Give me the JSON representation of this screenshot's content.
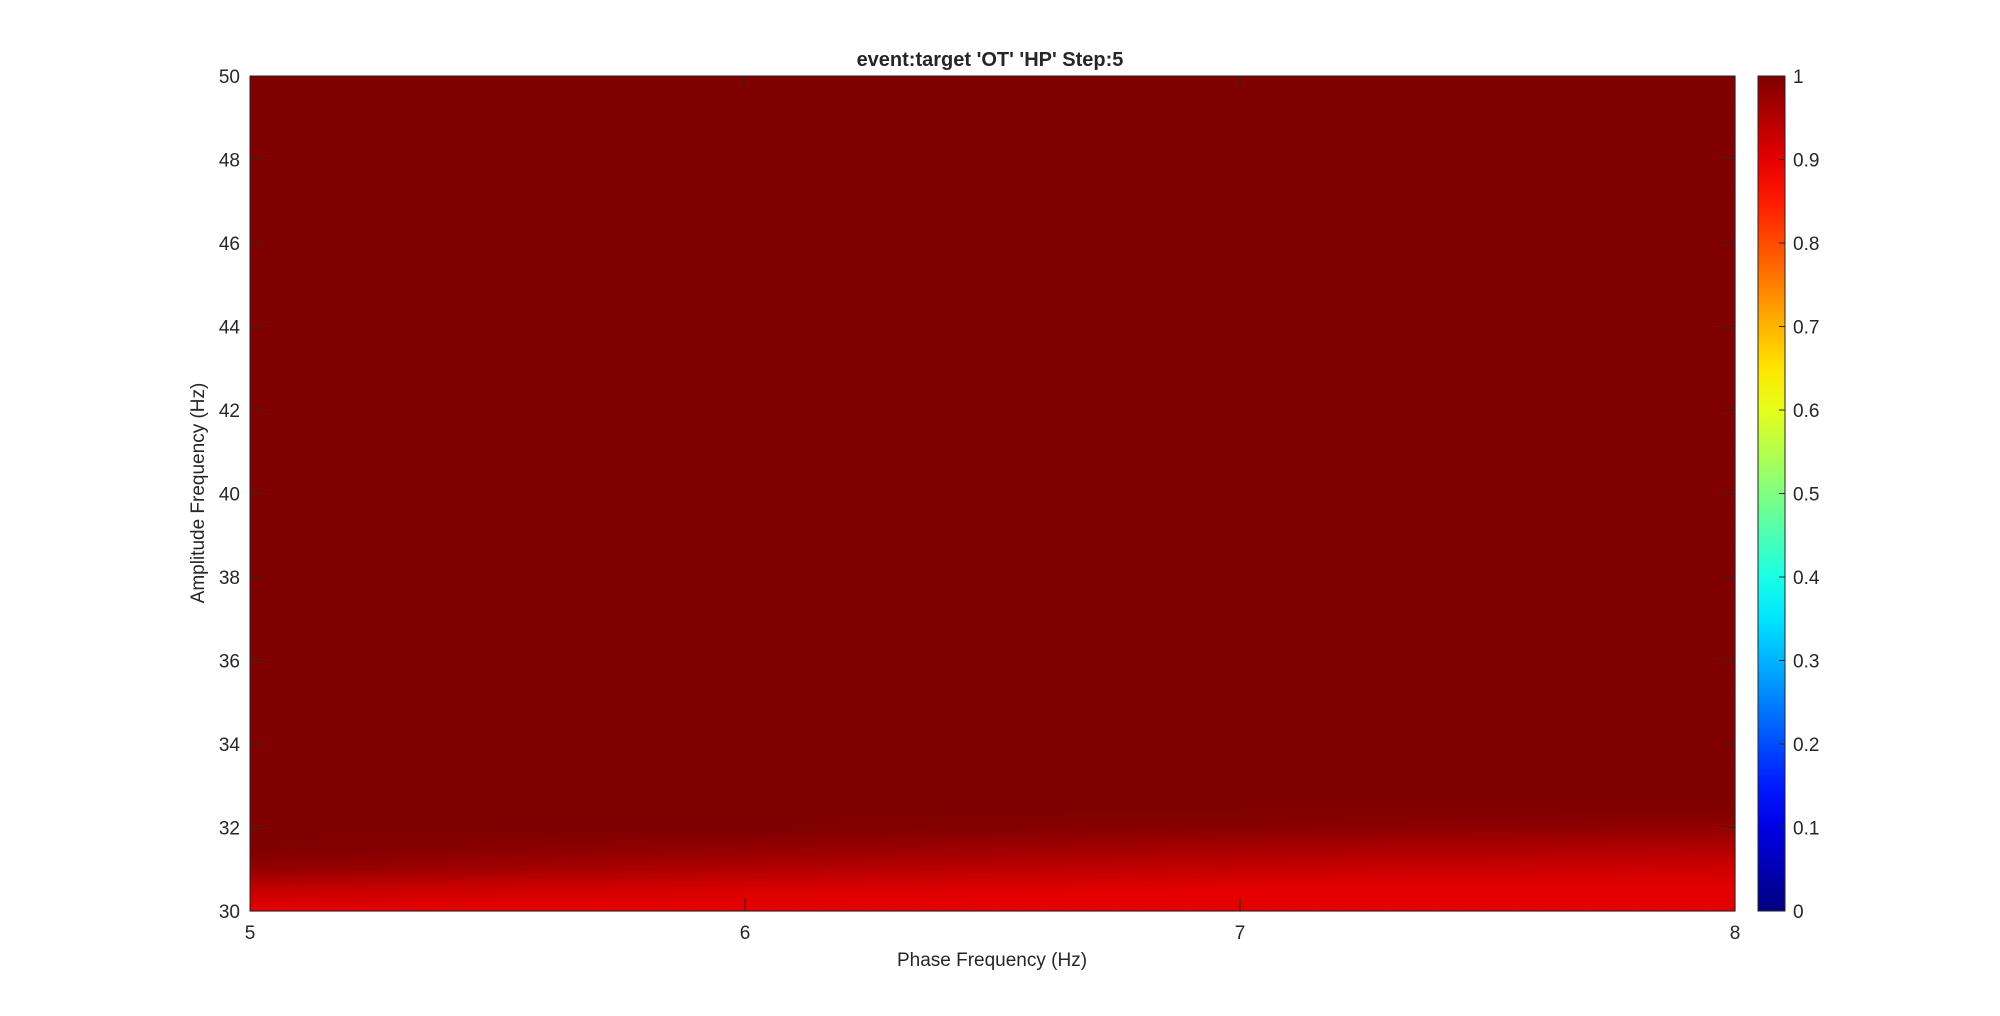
{
  "chart_data": {
    "type": "heatmap",
    "title": "event:target 'OT'  'HP' Step:5",
    "xlabel": "Phase Frequency (Hz)",
    "ylabel": "Amplitude Frequency (Hz)",
    "xlim": [
      5,
      8
    ],
    "ylim": [
      30,
      50
    ],
    "xticks": [
      "5",
      "6",
      "7",
      "8"
    ],
    "yticks": [
      "30",
      "32",
      "34",
      "36",
      "38",
      "40",
      "42",
      "44",
      "46",
      "48",
      "50"
    ],
    "colormap": "jet",
    "clim": [
      0,
      1
    ],
    "colorbar_ticks": [
      "0",
      "0.1",
      "0.2",
      "0.3",
      "0.4",
      "0.5",
      "0.6",
      "0.7",
      "0.8",
      "0.9",
      "1"
    ],
    "x": [
      5,
      6,
      7,
      8
    ],
    "y": [
      30,
      30.5,
      31,
      31.5,
      32,
      32.5,
      33,
      50
    ],
    "z": [
      [
        0.9,
        0.9,
        0.9,
        0.9
      ],
      [
        0.93,
        0.91,
        0.9,
        0.9
      ],
      [
        0.98,
        0.95,
        0.93,
        0.92
      ],
      [
        1.0,
        0.98,
        0.96,
        0.95
      ],
      [
        1.0,
        1.0,
        0.99,
        0.98
      ],
      [
        1.0,
        1.0,
        1.0,
        1.0
      ],
      [
        1.0,
        1.0,
        1.0,
        1.0
      ],
      [
        1.0,
        1.0,
        1.0,
        1.0
      ]
    ]
  }
}
